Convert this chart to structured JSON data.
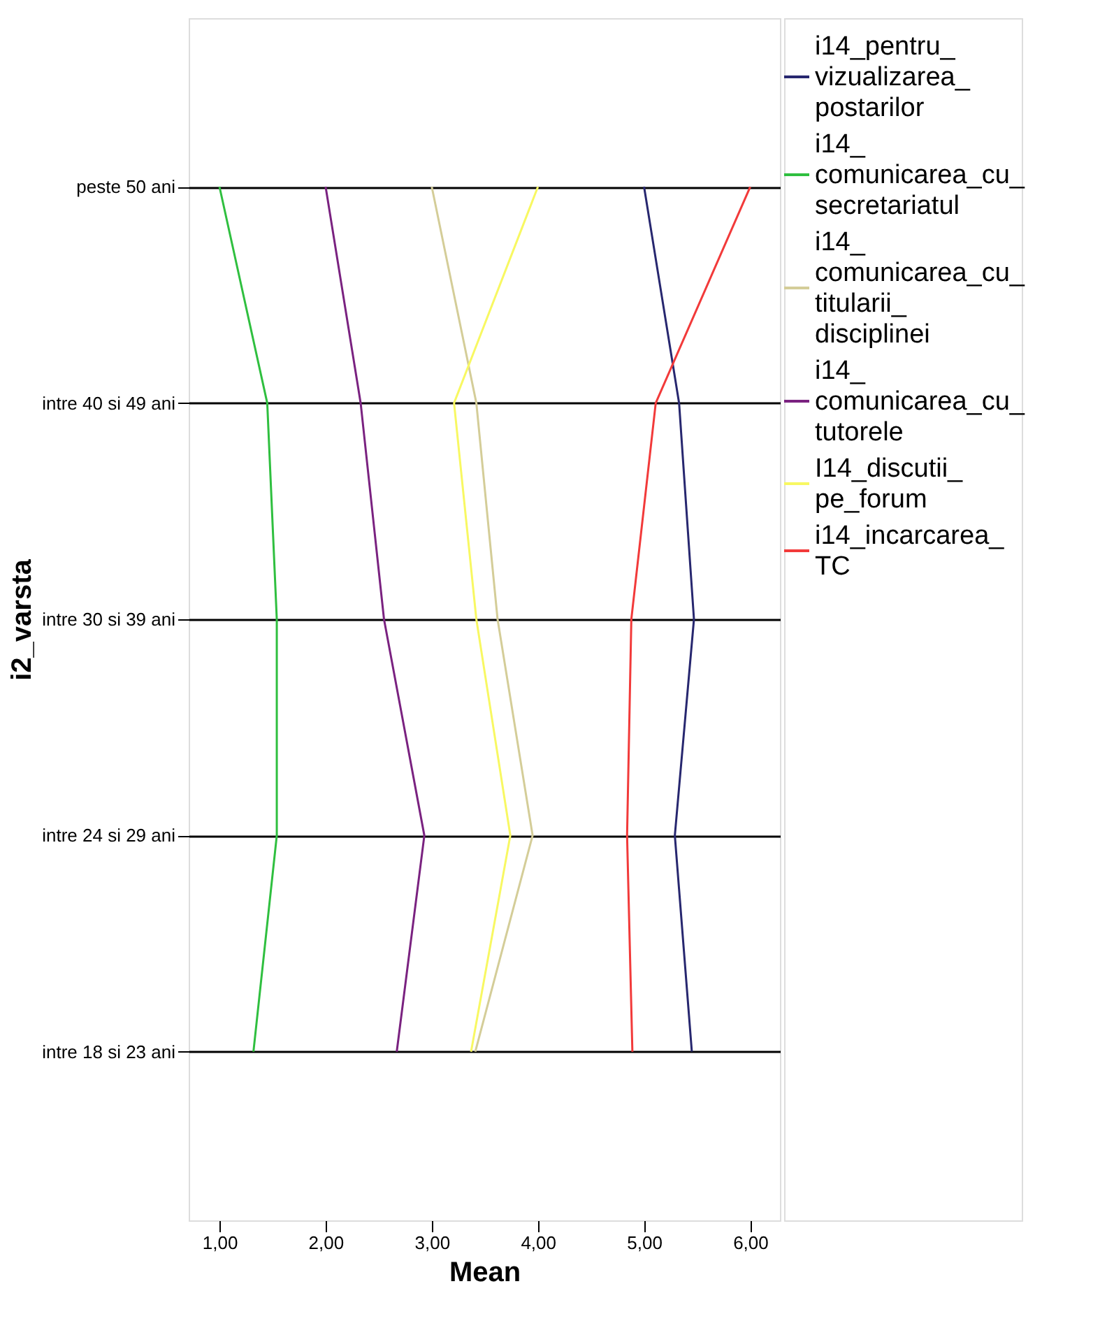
{
  "chart_data": {
    "type": "line",
    "orientation": "horizontal",
    "xlabel": "Mean",
    "ylabel": "i2_varsta",
    "categories": [
      "peste 50 ani",
      "intre 40 si 49 ani",
      "intre 30 si 39 ani",
      "intre 24 si 29 ani",
      "intre 18 si 23 ani"
    ],
    "series": [
      {
        "name": "i14_pentru_vizualizarea_postarilor",
        "color": "#27276f",
        "values": [
          5.0,
          5.33,
          5.47,
          5.29,
          5.45
        ]
      },
      {
        "name": "i14_comunicarea_cu_secretariatul",
        "color": "#2fbf3f",
        "values": [
          1.0,
          1.45,
          1.54,
          1.54,
          1.32
        ]
      },
      {
        "name": "i14_comunicarea_cu_titularii_disciplinei",
        "color": "#d4cd98",
        "values": [
          3.0,
          3.42,
          3.62,
          3.95,
          3.41
        ]
      },
      {
        "name": "i14_comunicarea_cu_tutorele",
        "color": "#7a2280",
        "values": [
          2.0,
          2.33,
          2.55,
          2.93,
          2.67
        ]
      },
      {
        "name": "I14_discutii_pe_forum",
        "color": "#f8f862",
        "values": [
          4.0,
          3.21,
          3.42,
          3.74,
          3.37
        ]
      },
      {
        "name": "i14_incarcarea_TC",
        "color": "#f23a3a",
        "values": [
          6.0,
          5.11,
          4.88,
          4.84,
          4.89
        ]
      }
    ],
    "xlim": [
      0.71,
      6.28
    ],
    "xticks": [
      {
        "value": 1,
        "label": "1,00"
      },
      {
        "value": 2,
        "label": "2,00"
      },
      {
        "value": 3,
        "label": "3,00"
      },
      {
        "value": 4,
        "label": "4,00"
      },
      {
        "value": 5,
        "label": "5,00"
      },
      {
        "value": 6,
        "label": "6,00"
      }
    ],
    "grid": "y",
    "legend": "right",
    "marker": "none",
    "line_style": "solid"
  }
}
